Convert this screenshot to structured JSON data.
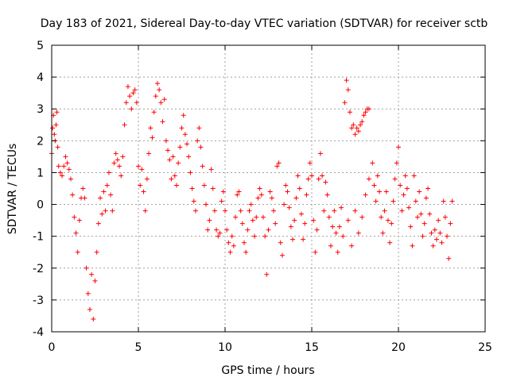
{
  "chart_data": {
    "type": "scatter",
    "title": "Day 183 of 2021, Sidereal Day-to-day VTEC variation (SDTVAR) for receiver sctb",
    "xlabel": "GPS time / hours",
    "ylabel": "SDTVAR / TECUs",
    "xlim": [
      0,
      25
    ],
    "ylim": [
      -4,
      5
    ],
    "xticks": [
      0,
      5,
      10,
      15,
      20,
      25
    ],
    "yticks": [
      -4,
      -3,
      -2,
      -1,
      0,
      1,
      2,
      3,
      4,
      5
    ],
    "grid": true,
    "marker": "+",
    "color": "#ff0000",
    "series": [
      {
        "name": "sctb",
        "points": [
          [
            0.0,
            1.6
          ],
          [
            0.05,
            2.4
          ],
          [
            0.1,
            2.8
          ],
          [
            0.15,
            2.2
          ],
          [
            0.2,
            2.0
          ],
          [
            0.25,
            2.5
          ],
          [
            0.3,
            2.9
          ],
          [
            0.35,
            1.8
          ],
          [
            0.4,
            1.2
          ],
          [
            0.5,
            1.0
          ],
          [
            0.6,
            0.9
          ],
          [
            0.7,
            1.2
          ],
          [
            0.8,
            1.5
          ],
          [
            0.9,
            1.3
          ],
          [
            1.0,
            1.1
          ],
          [
            1.1,
            0.8
          ],
          [
            1.2,
            0.3
          ],
          [
            1.3,
            -0.4
          ],
          [
            1.4,
            -0.9
          ],
          [
            1.5,
            -1.5
          ],
          [
            1.6,
            -0.5
          ],
          [
            1.7,
            0.2
          ],
          [
            1.8,
            0.5
          ],
          [
            1.9,
            0.2
          ],
          [
            2.0,
            -2.0
          ],
          [
            2.1,
            -2.8
          ],
          [
            2.2,
            -3.3
          ],
          [
            2.3,
            -2.2
          ],
          [
            2.4,
            -3.6
          ],
          [
            2.5,
            -2.4
          ],
          [
            2.6,
            -1.5
          ],
          [
            2.7,
            -0.6
          ],
          [
            2.8,
            0.2
          ],
          [
            2.9,
            -0.3
          ],
          [
            3.0,
            0.4
          ],
          [
            3.1,
            -0.2
          ],
          [
            3.2,
            0.6
          ],
          [
            3.3,
            1.0
          ],
          [
            3.4,
            0.3
          ],
          [
            3.5,
            -0.2
          ],
          [
            3.6,
            1.3
          ],
          [
            3.7,
            1.6
          ],
          [
            3.8,
            1.4
          ],
          [
            3.9,
            1.2
          ],
          [
            4.0,
            0.9
          ],
          [
            4.1,
            1.5
          ],
          [
            4.2,
            2.5
          ],
          [
            4.3,
            3.2
          ],
          [
            4.4,
            3.7
          ],
          [
            4.5,
            3.4
          ],
          [
            4.6,
            3.0
          ],
          [
            4.7,
            3.5
          ],
          [
            4.8,
            3.6
          ],
          [
            4.9,
            3.2
          ],
          [
            5.0,
            1.2
          ],
          [
            5.1,
            0.6
          ],
          [
            5.2,
            1.1
          ],
          [
            5.3,
            0.4
          ],
          [
            5.4,
            -0.2
          ],
          [
            5.5,
            0.8
          ],
          [
            5.6,
            1.6
          ],
          [
            5.7,
            2.4
          ],
          [
            5.8,
            2.1
          ],
          [
            5.9,
            2.9
          ],
          [
            6.0,
            3.4
          ],
          [
            6.1,
            3.8
          ],
          [
            6.2,
            3.6
          ],
          [
            6.3,
            3.2
          ],
          [
            6.4,
            2.6
          ],
          [
            6.5,
            3.3
          ],
          [
            6.6,
            2.0
          ],
          [
            6.7,
            1.7
          ],
          [
            6.8,
            1.4
          ],
          [
            6.9,
            0.8
          ],
          [
            7.0,
            1.5
          ],
          [
            7.1,
            0.9
          ],
          [
            7.2,
            0.6
          ],
          [
            7.3,
            1.3
          ],
          [
            7.4,
            1.8
          ],
          [
            7.5,
            2.4
          ],
          [
            7.6,
            2.8
          ],
          [
            7.7,
            2.2
          ],
          [
            7.8,
            1.9
          ],
          [
            7.9,
            1.5
          ],
          [
            8.0,
            1.0
          ],
          [
            8.1,
            0.5
          ],
          [
            8.2,
            0.1
          ],
          [
            8.3,
            -0.2
          ],
          [
            8.4,
            2.0
          ],
          [
            8.5,
            2.4
          ],
          [
            8.6,
            1.8
          ],
          [
            8.7,
            1.2
          ],
          [
            8.8,
            0.6
          ],
          [
            8.9,
            0.0
          ],
          [
            9.0,
            -0.8
          ],
          [
            9.1,
            -0.5
          ],
          [
            9.2,
            1.1
          ],
          [
            9.3,
            0.5
          ],
          [
            9.4,
            -0.2
          ],
          [
            9.5,
            -0.8
          ],
          [
            9.6,
            -1.0
          ],
          [
            9.7,
            -0.9
          ],
          [
            9.8,
            0.1
          ],
          [
            9.9,
            0.4
          ],
          [
            10.0,
            -0.2
          ],
          [
            10.1,
            -0.8
          ],
          [
            10.2,
            -1.2
          ],
          [
            10.3,
            -1.5
          ],
          [
            10.4,
            -1.0
          ],
          [
            10.5,
            -1.3
          ],
          [
            10.6,
            -0.4
          ],
          [
            10.7,
            0.3
          ],
          [
            10.8,
            0.4
          ],
          [
            10.9,
            -0.2
          ],
          [
            11.0,
            -0.6
          ],
          [
            11.1,
            -1.2
          ],
          [
            11.2,
            -1.5
          ],
          [
            11.3,
            -0.8
          ],
          [
            11.4,
            -0.2
          ],
          [
            11.5,
            0.0
          ],
          [
            11.6,
            -0.5
          ],
          [
            11.7,
            -1.0
          ],
          [
            11.8,
            -0.4
          ],
          [
            11.9,
            0.2
          ],
          [
            12.0,
            0.5
          ],
          [
            12.1,
            0.3
          ],
          [
            12.2,
            -0.4
          ],
          [
            12.3,
            -1.0
          ],
          [
            12.4,
            -2.2
          ],
          [
            12.5,
            -0.8
          ],
          [
            12.6,
            0.4
          ],
          [
            12.7,
            0.2
          ],
          [
            12.8,
            -0.2
          ],
          [
            12.9,
            -0.6
          ],
          [
            13.0,
            1.2
          ],
          [
            13.1,
            1.3
          ],
          [
            13.2,
            -1.2
          ],
          [
            13.3,
            -1.6
          ],
          [
            13.4,
            0.0
          ],
          [
            13.5,
            0.6
          ],
          [
            13.6,
            0.4
          ],
          [
            13.7,
            -0.1
          ],
          [
            13.8,
            -0.7
          ],
          [
            13.9,
            -1.1
          ],
          [
            14.0,
            -0.5
          ],
          [
            14.1,
            0.2
          ],
          [
            14.2,
            0.9
          ],
          [
            14.3,
            0.5
          ],
          [
            14.4,
            -0.3
          ],
          [
            14.5,
            -1.1
          ],
          [
            14.6,
            -0.6
          ],
          [
            14.7,
            0.3
          ],
          [
            14.8,
            0.8
          ],
          [
            14.9,
            1.3
          ],
          [
            15.0,
            0.9
          ],
          [
            15.1,
            -0.5
          ],
          [
            15.2,
            -1.5
          ],
          [
            15.3,
            -0.8
          ],
          [
            15.4,
            0.8
          ],
          [
            15.5,
            1.6
          ],
          [
            15.6,
            0.9
          ],
          [
            15.7,
            -0.2
          ],
          [
            15.8,
            0.7
          ],
          [
            15.9,
            0.3
          ],
          [
            16.0,
            -0.4
          ],
          [
            16.1,
            -1.3
          ],
          [
            16.2,
            -0.7
          ],
          [
            16.3,
            -0.2
          ],
          [
            16.4,
            -0.9
          ],
          [
            16.5,
            -1.5
          ],
          [
            16.6,
            -0.7
          ],
          [
            16.7,
            -0.1
          ],
          [
            16.8,
            -1.0
          ],
          [
            16.9,
            3.2
          ],
          [
            17.0,
            3.9
          ],
          [
            17.1,
            3.6
          ],
          [
            17.2,
            2.9
          ],
          [
            17.3,
            2.4
          ],
          [
            17.4,
            2.5
          ],
          [
            17.5,
            2.2
          ],
          [
            17.6,
            2.4
          ],
          [
            17.7,
            2.3
          ],
          [
            17.8,
            2.5
          ],
          [
            17.9,
            2.6
          ],
          [
            18.0,
            2.8
          ],
          [
            18.1,
            2.9
          ],
          [
            18.2,
            3.0
          ],
          [
            18.3,
            3.0
          ],
          [
            17.1,
            -0.5
          ],
          [
            17.3,
            -1.3
          ],
          [
            17.5,
            -0.2
          ],
          [
            17.7,
            -0.9
          ],
          [
            17.9,
            -0.4
          ],
          [
            18.1,
            0.3
          ],
          [
            18.3,
            0.8
          ],
          [
            18.5,
            1.3
          ],
          [
            18.6,
            0.6
          ],
          [
            18.7,
            0.1
          ],
          [
            18.8,
            0.9
          ],
          [
            18.9,
            0.4
          ],
          [
            19.0,
            -0.4
          ],
          [
            19.1,
            -0.9
          ],
          [
            19.2,
            -0.2
          ],
          [
            19.3,
            0.4
          ],
          [
            19.4,
            -0.5
          ],
          [
            19.5,
            -1.2
          ],
          [
            19.6,
            -0.6
          ],
          [
            19.7,
            0.1
          ],
          [
            19.8,
            0.8
          ],
          [
            19.9,
            1.3
          ],
          [
            20.0,
            1.8
          ],
          [
            20.1,
            0.6
          ],
          [
            20.2,
            -0.2
          ],
          [
            20.3,
            0.3
          ],
          [
            20.4,
            0.9
          ],
          [
            20.5,
            0.5
          ],
          [
            20.6,
            -0.1
          ],
          [
            20.7,
            -0.7
          ],
          [
            20.8,
            -1.3
          ],
          [
            20.9,
            0.9
          ],
          [
            21.0,
            0.1
          ],
          [
            21.1,
            -0.4
          ],
          [
            21.2,
            0.4
          ],
          [
            21.3,
            -0.3
          ],
          [
            21.4,
            -1.0
          ],
          [
            21.5,
            -0.6
          ],
          [
            21.6,
            0.2
          ],
          [
            21.7,
            0.5
          ],
          [
            21.8,
            -0.3
          ],
          [
            21.9,
            -0.9
          ],
          [
            22.0,
            -1.3
          ],
          [
            22.1,
            -0.8
          ],
          [
            22.2,
            -1.1
          ],
          [
            22.3,
            -0.5
          ],
          [
            22.4,
            -0.9
          ],
          [
            22.5,
            -1.2
          ],
          [
            22.6,
            0.1
          ],
          [
            22.7,
            -0.4
          ],
          [
            22.8,
            -1.0
          ],
          [
            22.9,
            -1.7
          ],
          [
            23.0,
            -0.6
          ],
          [
            23.1,
            0.1
          ]
        ]
      }
    ]
  }
}
